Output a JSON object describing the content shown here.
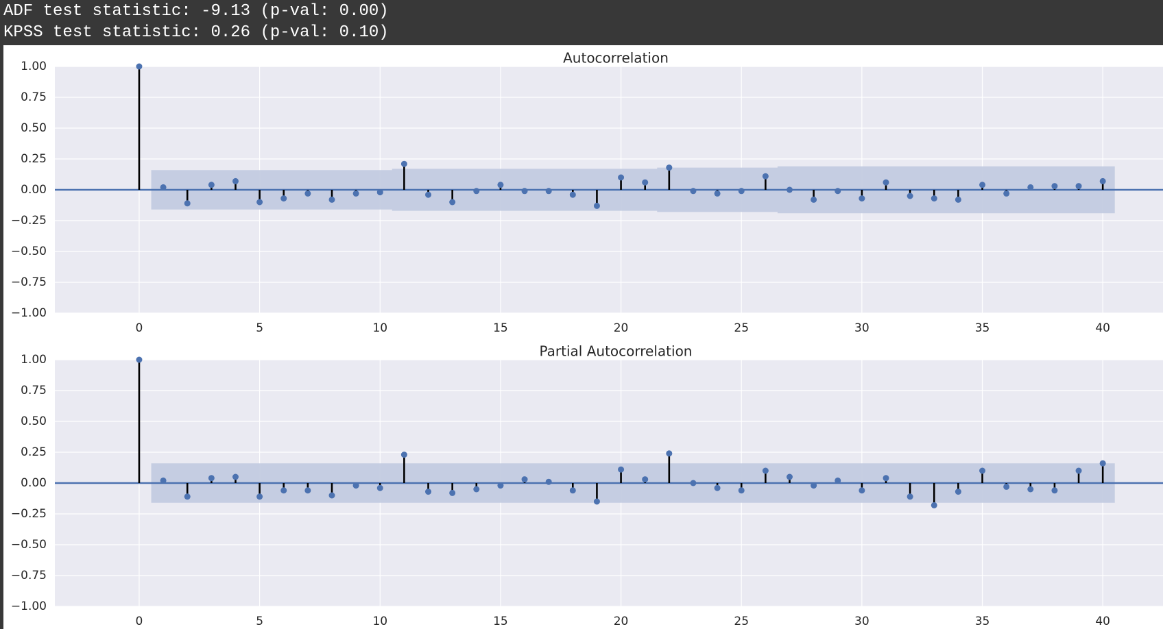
{
  "console": {
    "adf_line": "ADF test statistic: -9.13 (p-val: 0.00)",
    "kpss_line": "KPSS test statistic: 0.26 (p-val: 0.10)"
  },
  "colors": {
    "background": "#383838",
    "plot_face": "#eaeaf2",
    "grid": "#ffffff",
    "marker": "#4c72b0",
    "stem": "#000000",
    "confidence_band": "#c3cbe0",
    "zero_line": "#4c72b0"
  },
  "chart_data": [
    {
      "type": "stem",
      "title": "Autocorrelation",
      "xlim": [
        -3.5,
        42.5
      ],
      "ylim": [
        -1.0,
        1.0
      ],
      "xticks": [
        "0",
        "5",
        "10",
        "15",
        "20",
        "25",
        "30",
        "35",
        "40"
      ],
      "yticks": [
        "1.00",
        "0.75",
        "0.50",
        "0.25",
        "0.00",
        "−0.25",
        "−0.50",
        "−0.75",
        "−1.00"
      ],
      "grid": true,
      "lags": [
        0,
        1,
        2,
        3,
        4,
        5,
        6,
        7,
        8,
        9,
        10,
        11,
        12,
        13,
        14,
        15,
        16,
        17,
        18,
        19,
        20,
        21,
        22,
        23,
        24,
        25,
        26,
        27,
        28,
        29,
        30,
        31,
        32,
        33,
        34,
        35,
        36,
        37,
        38,
        39,
        40
      ],
      "values": [
        1.0,
        0.02,
        -0.11,
        0.04,
        0.07,
        -0.1,
        -0.07,
        -0.03,
        -0.08,
        -0.03,
        -0.02,
        0.21,
        -0.04,
        -0.1,
        -0.01,
        0.04,
        -0.01,
        -0.01,
        -0.04,
        -0.13,
        0.1,
        0.06,
        0.18,
        -0.01,
        -0.03,
        -0.01,
        0.11,
        0.0,
        -0.08,
        -0.01,
        -0.07,
        0.06,
        -0.05,
        -0.07,
        -0.08,
        0.04,
        -0.03,
        0.02,
        0.03,
        0.03,
        0.07
      ],
      "confidence": [
        0.16,
        0.16,
        0.16,
        0.16,
        0.16,
        0.16,
        0.16,
        0.16,
        0.16,
        0.16,
        0.16,
        0.17,
        0.17,
        0.17,
        0.17,
        0.17,
        0.17,
        0.17,
        0.17,
        0.17,
        0.17,
        0.17,
        0.18,
        0.18,
        0.18,
        0.18,
        0.18,
        0.19,
        0.19,
        0.19,
        0.19,
        0.19,
        0.19,
        0.19,
        0.19,
        0.19,
        0.19,
        0.19,
        0.19,
        0.19,
        0.19
      ]
    },
    {
      "type": "stem",
      "title": "Partial Autocorrelation",
      "xlim": [
        -3.5,
        42.5
      ],
      "ylim": [
        -1.0,
        1.0
      ],
      "xticks": [
        "0",
        "5",
        "10",
        "15",
        "20",
        "25",
        "30",
        "35",
        "40"
      ],
      "yticks": [
        "1.00",
        "0.75",
        "0.50",
        "0.25",
        "0.00",
        "−0.25",
        "−0.50",
        "−0.75",
        "−1.00"
      ],
      "grid": true,
      "lags": [
        0,
        1,
        2,
        3,
        4,
        5,
        6,
        7,
        8,
        9,
        10,
        11,
        12,
        13,
        14,
        15,
        16,
        17,
        18,
        19,
        20,
        21,
        22,
        23,
        24,
        25,
        26,
        27,
        28,
        29,
        30,
        31,
        32,
        33,
        34,
        35,
        36,
        37,
        38,
        39,
        40
      ],
      "values": [
        1.0,
        0.02,
        -0.11,
        0.04,
        0.05,
        -0.11,
        -0.06,
        -0.06,
        -0.1,
        -0.02,
        -0.04,
        0.23,
        -0.07,
        -0.08,
        -0.05,
        -0.02,
        0.03,
        0.01,
        -0.06,
        -0.15,
        0.11,
        0.03,
        0.24,
        0.0,
        -0.04,
        -0.06,
        0.1,
        0.05,
        -0.02,
        0.02,
        -0.06,
        0.04,
        -0.11,
        -0.18,
        -0.07,
        0.1,
        -0.03,
        -0.05,
        -0.06,
        0.1,
        0.16
      ],
      "confidence": [
        0.16,
        0.16,
        0.16,
        0.16,
        0.16,
        0.16,
        0.16,
        0.16,
        0.16,
        0.16,
        0.16,
        0.16,
        0.16,
        0.16,
        0.16,
        0.16,
        0.16,
        0.16,
        0.16,
        0.16,
        0.16,
        0.16,
        0.16,
        0.16,
        0.16,
        0.16,
        0.16,
        0.16,
        0.16,
        0.16,
        0.16,
        0.16,
        0.16,
        0.16,
        0.16,
        0.16,
        0.16,
        0.16,
        0.16,
        0.16,
        0.16
      ]
    }
  ]
}
